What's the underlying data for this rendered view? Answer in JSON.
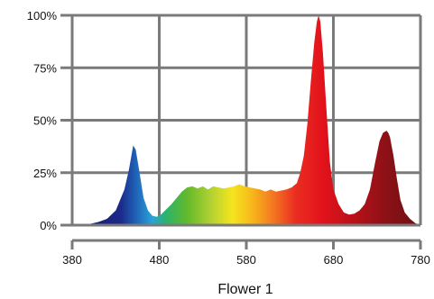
{
  "chart_data": {
    "type": "area",
    "title": "Flower 1",
    "xlabel": "",
    "ylabel": "",
    "xlim": [
      380,
      780
    ],
    "ylim": [
      0,
      100
    ],
    "x_ticks": [
      380,
      480,
      580,
      680,
      780
    ],
    "y_ticks": [
      0,
      25,
      50,
      75,
      100
    ],
    "x_tick_labels": [
      "380",
      "480",
      "580",
      "680",
      "780"
    ],
    "y_tick_labels": [
      "0%",
      "25%",
      "50%",
      "75%",
      "100%"
    ],
    "grid": true,
    "series": [
      {
        "x": [
          380,
          400,
          410,
          420,
          430,
          440,
          445,
          448,
          450,
          453,
          457,
          462,
          467,
          472,
          477,
          482,
          488,
          494,
          500,
          506,
          512,
          518,
          524,
          530,
          536,
          542,
          548,
          554,
          560,
          566,
          572,
          578,
          584,
          590,
          596,
          602,
          608,
          614,
          620,
          626,
          632,
          638,
          642,
          646,
          650,
          654,
          658,
          661,
          663,
          665,
          668,
          672,
          676,
          680,
          686,
          692,
          698,
          704,
          710,
          716,
          722,
          728,
          733,
          737,
          741,
          743,
          745,
          749,
          753,
          757,
          762,
          768,
          774,
          780
        ],
        "y": [
          0,
          0.5,
          1.5,
          3,
          7,
          17,
          26,
          33,
          38,
          36,
          26,
          13,
          7,
          4.5,
          4,
          5,
          7.5,
          10,
          13,
          16,
          18,
          18.5,
          17.5,
          18.5,
          17,
          18.5,
          18,
          17.5,
          18,
          18.5,
          19.5,
          18.5,
          18,
          17.5,
          17,
          16,
          17,
          16,
          16.5,
          17,
          18,
          20,
          25,
          33,
          48,
          68,
          87,
          97,
          100,
          97,
          82,
          55,
          30,
          17,
          10,
          6,
          5,
          5.5,
          7,
          10,
          17,
          30,
          40,
          44,
          45,
          44,
          42,
          33,
          22,
          12,
          6,
          3,
          1,
          0
        ]
      }
    ],
    "title_label": "Flower 1"
  }
}
